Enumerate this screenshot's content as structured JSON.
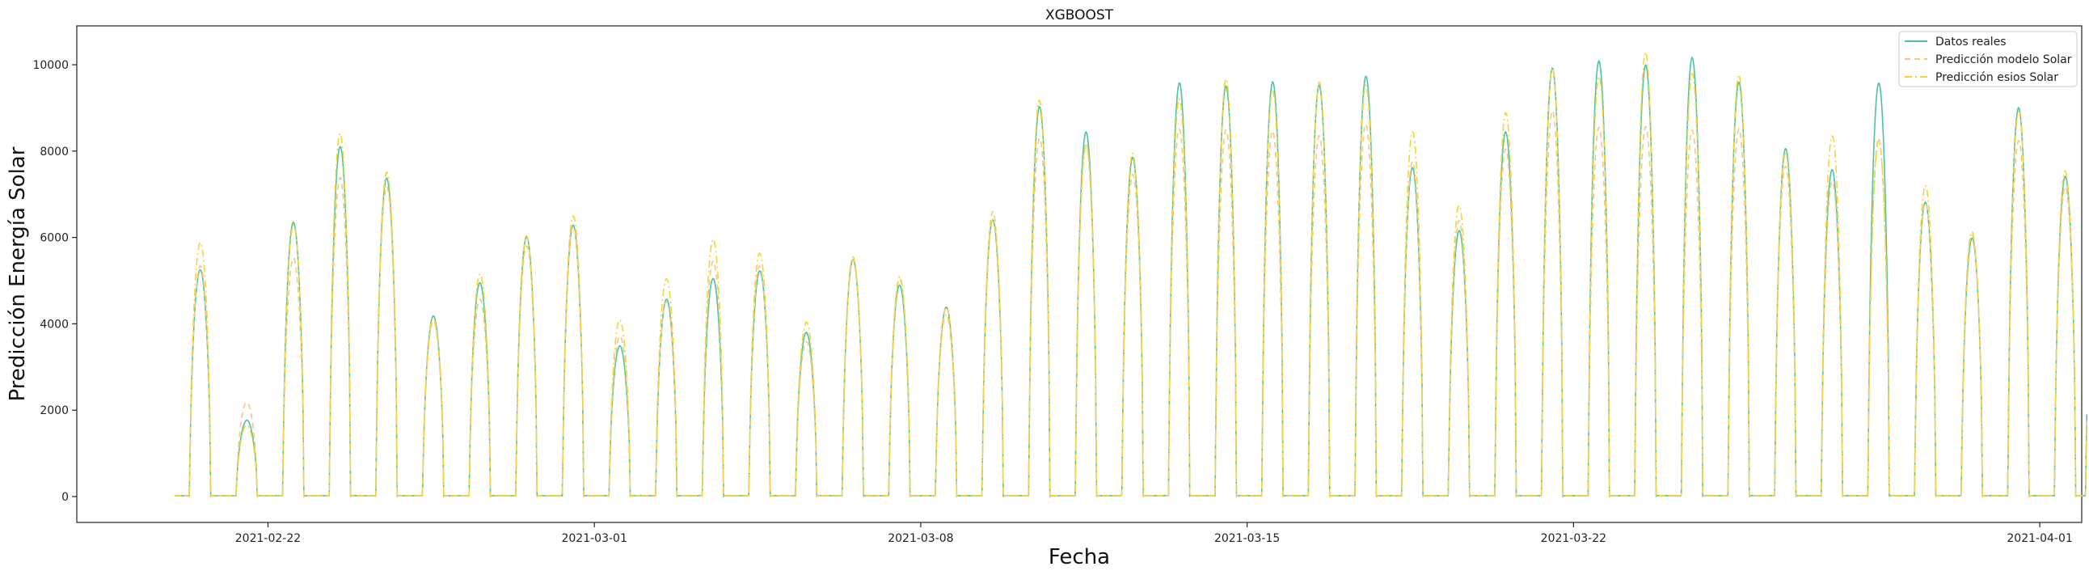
{
  "chart_data": {
    "type": "line",
    "title": "XGBOOST",
    "xlabel": "Fecha",
    "ylabel": "Predicción Energía Solar",
    "x_start": "2021-02-20",
    "x_end": "2021-04-01",
    "xlim_days": [
      -2.1,
      40.9
    ],
    "ylim": [
      -600,
      10900
    ],
    "xticks": [
      {
        "label": "2021-02-22",
        "day": 2
      },
      {
        "label": "2021-03-01",
        "day": 9
      },
      {
        "label": "2021-03-08",
        "day": 16
      },
      {
        "label": "2021-03-15",
        "day": 23
      },
      {
        "label": "2021-03-22",
        "day": 30
      },
      {
        "label": "2021-04-01",
        "day": 40
      }
    ],
    "yticks": [
      0,
      2000,
      4000,
      6000,
      8000,
      10000
    ],
    "legend_position": "upper-right",
    "daily_peaks": {
      "dates": [
        "02-20",
        "02-21",
        "02-22",
        "02-23",
        "02-24",
        "02-25",
        "02-26",
        "02-27",
        "02-28",
        "03-01",
        "03-02",
        "03-03",
        "03-04",
        "03-05",
        "03-06",
        "03-07",
        "03-08",
        "03-09",
        "03-10",
        "03-11",
        "03-12",
        "03-13",
        "03-14",
        "03-15",
        "03-16",
        "03-17",
        "03-18",
        "03-19",
        "03-20",
        "03-21",
        "03-22",
        "03-23",
        "03-24",
        "03-25",
        "03-26",
        "03-27",
        "03-28",
        "03-29",
        "03-30",
        "03-31",
        "04-01"
      ],
      "series": [
        {
          "name": "Datos reales",
          "color": "#4fc3a1",
          "dash": "solid",
          "values": [
            5400,
            1800,
            6500,
            8300,
            7500,
            4300,
            5000,
            6200,
            6300,
            3600,
            4600,
            5200,
            5300,
            3900,
            5600,
            5000,
            4500,
            6500,
            9300,
            8500,
            8100,
            9600,
            9800,
            9700,
            9800,
            9900,
            7800,
            6300,
            8600,
            10200,
            10200,
            10300,
            10200,
            9900,
            8100,
            7800,
            9700,
            7000,
            6100,
            9200,
            7600
          ]
        },
        {
          "name": "Predicción modelo Solar",
          "color": "#f2c88a",
          "dash": "7,5",
          "values": [
            5500,
            2200,
            5700,
            7400,
            7400,
            4100,
            4700,
            5900,
            6400,
            3800,
            4600,
            5600,
            5400,
            3700,
            5500,
            5200,
            4400,
            6800,
            8400,
            8400,
            7600,
            8700,
            8700,
            8600,
            8600,
            8700,
            8000,
            6400,
            8300,
            9000,
            8800,
            8700,
            8700,
            8700,
            7800,
            7500,
            8400,
            7000,
            6100,
            8500,
            7200
          ]
        },
        {
          "name": "Predicción esios Solar",
          "color": "#f7d531",
          "dash": "9,4,2,4",
          "values": [
            5950,
            1700,
            6400,
            8600,
            7700,
            4200,
            5300,
            6100,
            6700,
            4100,
            5200,
            6000,
            5800,
            4100,
            5700,
            5200,
            4300,
            6600,
            9300,
            8400,
            8000,
            9500,
            9700,
            9700,
            9700,
            9800,
            8600,
            6900,
            9100,
            10100,
            10000,
            10400,
            10100,
            9800,
            8200,
            8400,
            8500,
            7300,
            6300,
            9100,
            7700
          ]
        }
      ]
    }
  }
}
